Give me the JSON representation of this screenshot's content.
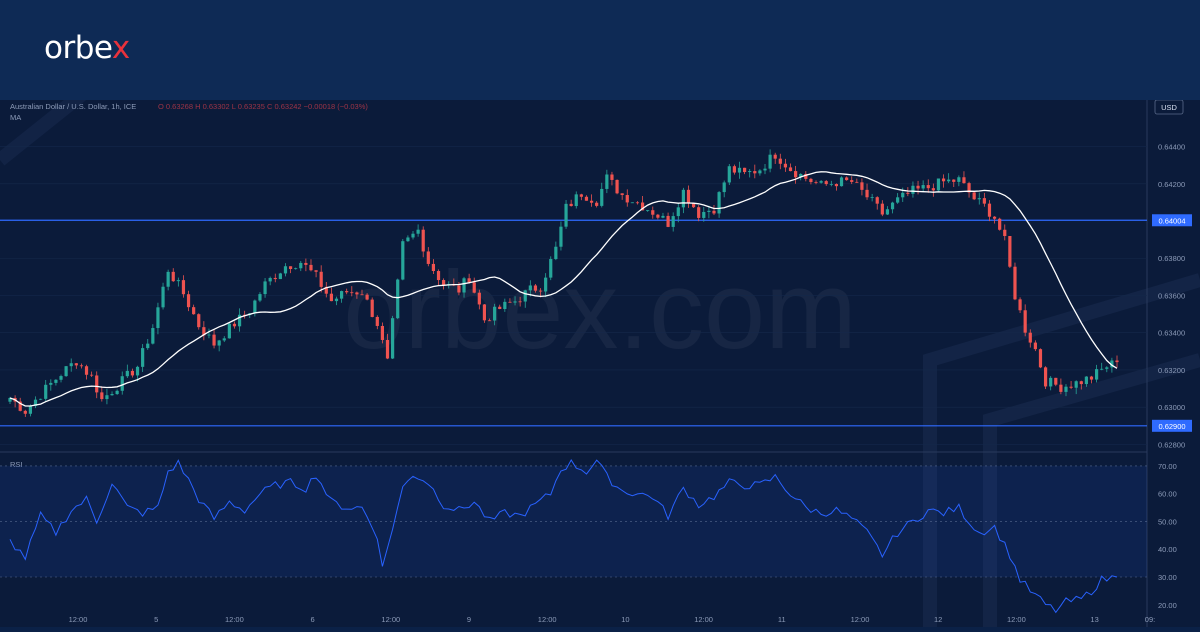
{
  "brand": {
    "name_prefix": "orbe",
    "name_x": "x"
  },
  "watermark": "orbex.com",
  "header": {
    "symbol": "Australian Dollar / U.S. Dollar, 1h, ICE",
    "ohlc": "O 0.63268  H 0.63302  L 0.63235  C 0.63242  −0.00018 (−0.03%)",
    "indicator": "MA",
    "currency": "USD"
  },
  "colors": {
    "up": "#26a69a",
    "down": "#ef5350",
    "ma": "#ffffff",
    "rsi": "#2962ff",
    "level": "#2f6bff"
  },
  "chart_data": [
    {
      "type": "candlestick",
      "title": "",
      "ylim": [
        0.6277,
        0.6465
      ],
      "y_ticks": [
        "0.64400",
        "0.64200",
        "0.63800",
        "0.63600",
        "0.63400",
        "0.63200",
        "0.63000",
        "0.62800"
      ],
      "x_ticks": [
        "12:00",
        "5",
        "12:00",
        "6",
        "12:00",
        "9",
        "12:00",
        "10",
        "12:00",
        "11",
        "12:00",
        "12",
        "12:00",
        "13",
        "09:"
      ],
      "levels": [
        {
          "value": 0.64004,
          "label": "0.64004"
        },
        {
          "value": 0.629,
          "label": "0.62900"
        }
      ],
      "anchors": [
        [
          0,
          0.6305
        ],
        [
          3,
          0.6298
        ],
        [
          6,
          0.6307
        ],
        [
          10,
          0.6318
        ],
        [
          13,
          0.6325
        ],
        [
          16,
          0.6316
        ],
        [
          18,
          0.6304
        ],
        [
          22,
          0.6314
        ],
        [
          25,
          0.6322
        ],
        [
          28,
          0.6343
        ],
        [
          31,
          0.6374
        ],
        [
          34,
          0.6361
        ],
        [
          37,
          0.6344
        ],
        [
          40,
          0.6334
        ],
        [
          44,
          0.6345
        ],
        [
          47,
          0.6352
        ],
        [
          50,
          0.6366
        ],
        [
          54,
          0.6376
        ],
        [
          57,
          0.6378
        ],
        [
          60,
          0.637
        ],
        [
          63,
          0.6357
        ],
        [
          66,
          0.6362
        ],
        [
          69,
          0.6362
        ],
        [
          72,
          0.6345
        ],
        [
          74,
          0.6324
        ],
        [
          77,
          0.6387
        ],
        [
          80,
          0.6395
        ],
        [
          82,
          0.6378
        ],
        [
          85,
          0.6366
        ],
        [
          88,
          0.6363
        ],
        [
          90,
          0.637
        ],
        [
          93,
          0.6347
        ],
        [
          96,
          0.6353
        ],
        [
          99,
          0.6357
        ],
        [
          102,
          0.6363
        ],
        [
          104,
          0.6365
        ],
        [
          107,
          0.6385
        ],
        [
          109,
          0.6407
        ],
        [
          112,
          0.6415
        ],
        [
          115,
          0.6411
        ],
        [
          117,
          0.6423
        ],
        [
          120,
          0.6414
        ],
        [
          123,
          0.641
        ],
        [
          126,
          0.6405
        ],
        [
          129,
          0.6399
        ],
        [
          132,
          0.6416
        ],
        [
          135,
          0.6404
        ],
        [
          138,
          0.6407
        ],
        [
          141,
          0.6428
        ],
        [
          144,
          0.6425
        ],
        [
          147,
          0.6428
        ],
        [
          150,
          0.6436
        ],
        [
          153,
          0.6428
        ],
        [
          156,
          0.6423
        ],
        [
          159,
          0.6419
        ],
        [
          162,
          0.6421
        ],
        [
          165,
          0.6421
        ],
        [
          168,
          0.6413
        ],
        [
          171,
          0.6404
        ],
        [
          174,
          0.6411
        ],
        [
          177,
          0.6416
        ],
        [
          180,
          0.6418
        ],
        [
          183,
          0.6421
        ],
        [
          186,
          0.6422
        ],
        [
          189,
          0.6412
        ],
        [
          191,
          0.6408
        ],
        [
          193,
          0.6402
        ],
        [
          195,
          0.6389
        ],
        [
          197,
          0.636
        ],
        [
          199,
          0.6342
        ],
        [
          201,
          0.6331
        ],
        [
          203,
          0.6314
        ],
        [
          206,
          0.6311
        ],
        [
          209,
          0.6313
        ],
        [
          212,
          0.6316
        ],
        [
          215,
          0.6322
        ],
        [
          217,
          0.63242
        ]
      ],
      "ma_period": 20
    },
    {
      "type": "line",
      "title": "RSI",
      "ylim": [
        12,
        75
      ],
      "y_ticks": [
        "70.00",
        "60.00",
        "50.00",
        "40.00",
        "30.00",
        "20.00"
      ],
      "band": [
        30,
        70
      ],
      "anchors": [
        [
          0,
          43
        ],
        [
          3,
          37
        ],
        [
          6,
          52
        ],
        [
          9,
          46
        ],
        [
          12,
          54
        ],
        [
          15,
          58
        ],
        [
          17,
          50
        ],
        [
          20,
          64
        ],
        [
          23,
          55
        ],
        [
          26,
          53
        ],
        [
          29,
          55
        ],
        [
          31,
          68
        ],
        [
          33,
          71
        ],
        [
          35,
          65
        ],
        [
          37,
          58
        ],
        [
          40,
          51
        ],
        [
          43,
          57
        ],
        [
          46,
          54
        ],
        [
          49,
          60
        ],
        [
          52,
          63
        ],
        [
          55,
          64
        ],
        [
          58,
          62
        ],
        [
          60,
          67
        ],
        [
          63,
          57
        ],
        [
          66,
          55
        ],
        [
          69,
          55
        ],
        [
          72,
          45
        ],
        [
          73,
          33
        ],
        [
          75,
          48
        ],
        [
          77,
          62
        ],
        [
          79,
          67
        ],
        [
          82,
          64
        ],
        [
          85,
          56
        ],
        [
          88,
          54
        ],
        [
          91,
          57
        ],
        [
          94,
          50
        ],
        [
          97,
          53
        ],
        [
          100,
          52
        ],
        [
          103,
          56
        ],
        [
          106,
          60
        ],
        [
          108,
          69
        ],
        [
          110,
          71
        ],
        [
          113,
          68
        ],
        [
          115,
          72
        ],
        [
          117,
          66
        ],
        [
          120,
          61
        ],
        [
          123,
          60
        ],
        [
          126,
          59
        ],
        [
          129,
          52
        ],
        [
          132,
          62
        ],
        [
          135,
          56
        ],
        [
          138,
          59
        ],
        [
          141,
          64
        ],
        [
          144,
          63
        ],
        [
          147,
          63
        ],
        [
          150,
          66
        ],
        [
          153,
          60
        ],
        [
          156,
          55
        ],
        [
          159,
          53
        ],
        [
          162,
          54
        ],
        [
          165,
          51
        ],
        [
          168,
          46
        ],
        [
          171,
          38
        ],
        [
          174,
          46
        ],
        [
          177,
          50
        ],
        [
          180,
          54
        ],
        [
          183,
          53
        ],
        [
          186,
          55
        ],
        [
          188,
          50
        ],
        [
          190,
          46
        ],
        [
          193,
          48
        ],
        [
          196,
          38
        ],
        [
          198,
          29
        ],
        [
          200,
          25
        ],
        [
          203,
          20
        ],
        [
          205,
          18
        ],
        [
          207,
          21
        ],
        [
          210,
          22
        ],
        [
          212,
          25
        ],
        [
          214,
          29
        ],
        [
          217,
          30
        ]
      ]
    }
  ]
}
